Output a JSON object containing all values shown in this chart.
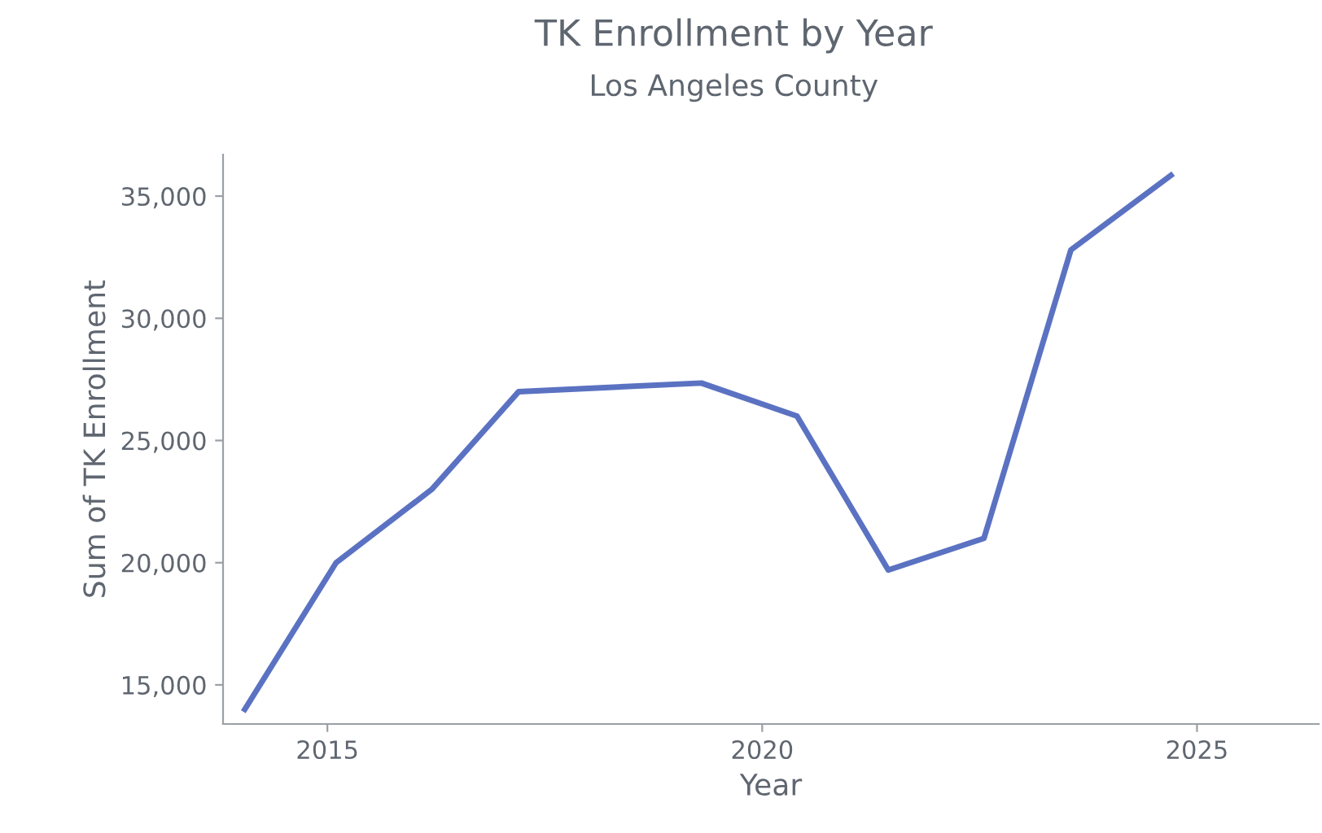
{
  "chart_data": {
    "type": "line",
    "title": "TK Enrollment by Year",
    "subtitle": "Los Angeles County",
    "xlabel": "Year",
    "ylabel": "Sum of TK Enrollment",
    "x": [
      2014.05,
      2015.1,
      2016.2,
      2017.2,
      2019.3,
      2020.4,
      2021.45,
      2022.55,
      2023.55,
      2024.7
    ],
    "series": [
      {
        "color": "#5b72c2",
        "values": [
          14000,
          20000,
          23000,
          27000,
          27350,
          26000,
          19700,
          21000,
          32800,
          35850
        ]
      }
    ],
    "xlim": [
      2013.8,
      2026.4
    ],
    "xticks": [
      2015,
      2020,
      2025
    ],
    "ylim": [
      13400,
      36700
    ],
    "yticks": [
      {
        "value": 15000,
        "label": "15,000"
      },
      {
        "value": 20000,
        "label": "20,000"
      },
      {
        "value": 25000,
        "label": "25,000"
      },
      {
        "value": 30000,
        "label": "30,000"
      },
      {
        "value": 35000,
        "label": "35,000"
      }
    ],
    "grid": false,
    "marker": "none",
    "line_style": "solid"
  }
}
